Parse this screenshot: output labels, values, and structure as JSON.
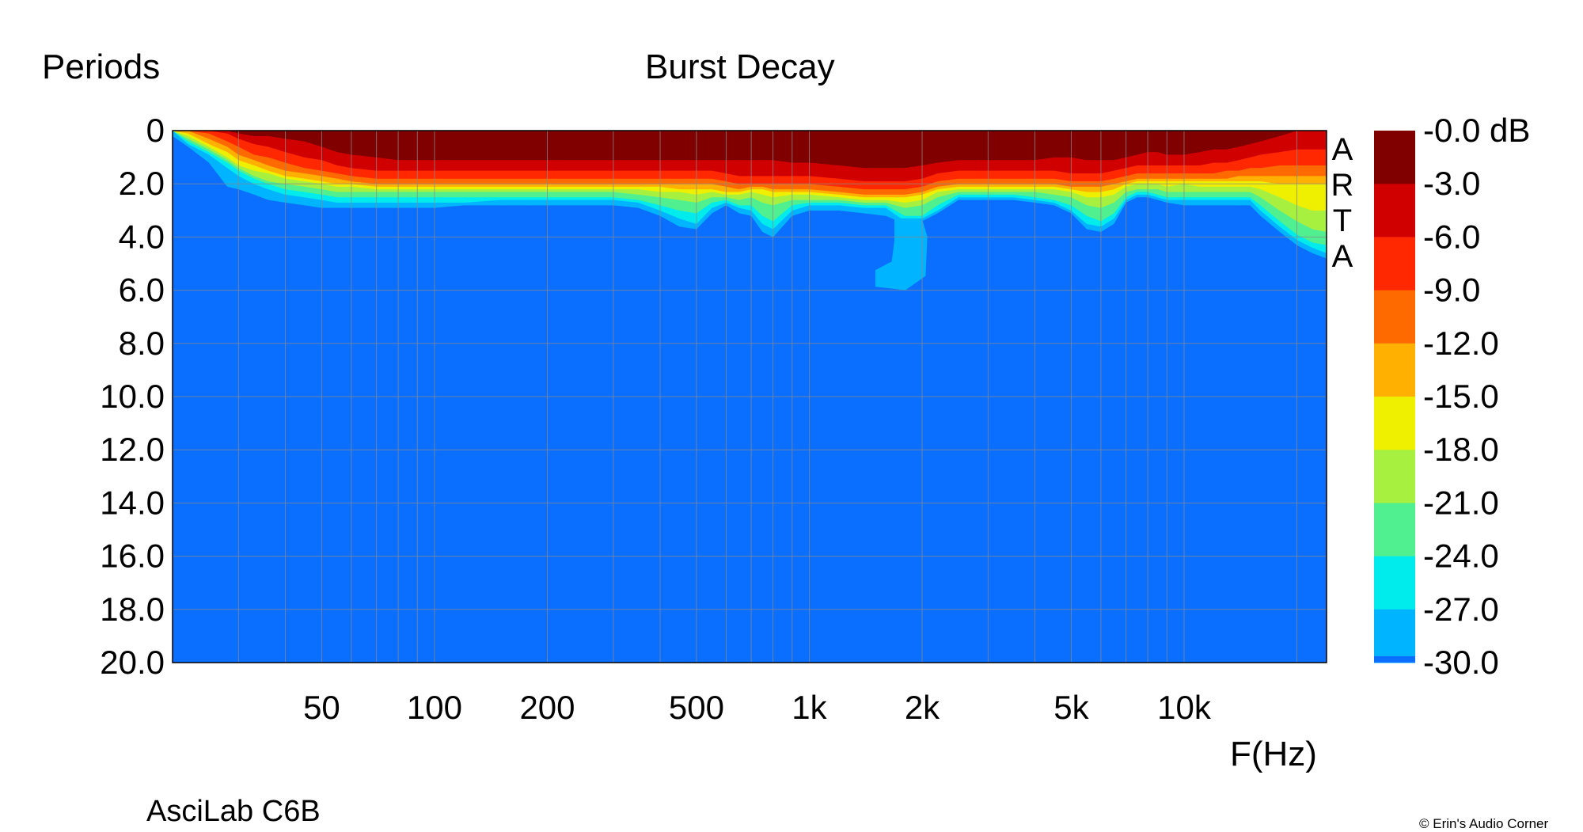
{
  "chart_data": {
    "type": "heatmap",
    "title": "Burst Decay",
    "ylabel": "Periods",
    "xlabel": "F(Hz)",
    "x_scale": "log",
    "xlim": [
      20,
      24000
    ],
    "ylim": [
      20.0,
      0
    ],
    "x_tick_values": [
      50,
      100,
      200,
      500,
      1000,
      2000,
      5000,
      10000
    ],
    "x_tick_labels": [
      "50",
      "100",
      "200",
      "500",
      "1k",
      "2k",
      "5k",
      "10k"
    ],
    "y_tick_values": [
      0,
      2,
      4,
      6,
      8,
      10,
      12,
      14,
      16,
      18,
      20
    ],
    "y_tick_labels": [
      "0",
      "2.0",
      "4.0",
      "6.0",
      "8.0",
      "10.0",
      "12.0",
      "14.0",
      "16.0",
      "18.0",
      "20.0"
    ],
    "grid": true,
    "colorbar": {
      "unit": "dB",
      "labels": [
        "-0.0 dB",
        "-3.0",
        "-6.0",
        "-9.0",
        "-12.0",
        "-15.0",
        "-18.0",
        "-21.0",
        "-24.0",
        "-27.0",
        "-30.0"
      ],
      "levels": [
        {
          "from": 0,
          "to": -3,
          "color": "#800000"
        },
        {
          "from": -3,
          "to": -6,
          "color": "#d00000"
        },
        {
          "from": -6,
          "to": -9,
          "color": "#ff2800"
        },
        {
          "from": -9,
          "to": -12,
          "color": "#ff6a00"
        },
        {
          "from": -12,
          "to": -15,
          "color": "#ffb000"
        },
        {
          "from": -15,
          "to": -18,
          "color": "#eef000"
        },
        {
          "from": -18,
          "to": -21,
          "color": "#a8f040"
        },
        {
          "from": -21,
          "to": -24,
          "color": "#50f090"
        },
        {
          "from": -24,
          "to": -27,
          "color": "#00ecec"
        },
        {
          "from": -27,
          "to": -30,
          "color": "#00b4ff"
        },
        {
          "from": -30,
          "to": -99,
          "color": "#0a6eff"
        }
      ]
    },
    "decay_contours": {
      "freq_hz": [
        20,
        22,
        25,
        28,
        30,
        33,
        36,
        40,
        45,
        50,
        55,
        60,
        70,
        80,
        90,
        100,
        120,
        150,
        180,
        200,
        250,
        300,
        350,
        400,
        450,
        500,
        550,
        600,
        650,
        700,
        750,
        800,
        900,
        1000,
        1200,
        1400,
        1600,
        1800,
        2000,
        2200,
        2500,
        3000,
        3500,
        4000,
        4500,
        5000,
        5500,
        6000,
        6500,
        7000,
        7500,
        8000,
        8500,
        9000,
        10000,
        11000,
        12000,
        13000,
        14000,
        15000,
        16000,
        18000,
        20000,
        22000,
        24000
      ],
      "periods_to_-3dB": [
        0.0,
        0.0,
        0.0,
        0.0,
        0.1,
        0.2,
        0.2,
        0.3,
        0.4,
        0.6,
        0.8,
        0.9,
        1.0,
        1.1,
        1.1,
        1.1,
        1.1,
        1.1,
        1.1,
        1.1,
        1.1,
        1.1,
        1.1,
        1.1,
        1.1,
        1.1,
        1.1,
        1.1,
        1.1,
        1.1,
        1.1,
        1.1,
        1.2,
        1.2,
        1.3,
        1.4,
        1.4,
        1.4,
        1.3,
        1.2,
        1.1,
        1.1,
        1.1,
        1.1,
        1.0,
        1.0,
        1.1,
        1.1,
        1.1,
        1.0,
        0.9,
        0.8,
        0.8,
        0.9,
        0.9,
        0.8,
        0.7,
        0.7,
        0.6,
        0.5,
        0.4,
        0.2,
        0.0,
        0.0,
        0.0
      ],
      "periods_to_-6dB": [
        0.0,
        0.0,
        0.0,
        0.1,
        0.3,
        0.5,
        0.6,
        0.8,
        1.0,
        1.1,
        1.3,
        1.4,
        1.5,
        1.5,
        1.5,
        1.5,
        1.5,
        1.5,
        1.5,
        1.5,
        1.5,
        1.5,
        1.5,
        1.5,
        1.5,
        1.5,
        1.5,
        1.6,
        1.7,
        1.7,
        1.7,
        1.7,
        1.7,
        1.7,
        1.8,
        1.9,
        1.9,
        1.9,
        1.8,
        1.6,
        1.5,
        1.5,
        1.5,
        1.5,
        1.5,
        1.6,
        1.6,
        1.6,
        1.5,
        1.4,
        1.3,
        1.3,
        1.3,
        1.3,
        1.3,
        1.3,
        1.2,
        1.2,
        1.1,
        1.0,
        0.9,
        0.8,
        0.7,
        0.7,
        0.7
      ],
      "periods_to_-9dB": [
        0.0,
        0.0,
        0.1,
        0.4,
        0.6,
        0.9,
        1.0,
        1.2,
        1.4,
        1.5,
        1.6,
        1.7,
        1.8,
        1.8,
        1.8,
        1.8,
        1.8,
        1.8,
        1.8,
        1.8,
        1.8,
        1.8,
        1.8,
        1.8,
        1.8,
        1.8,
        1.8,
        1.9,
        2.0,
        2.0,
        2.0,
        2.0,
        2.0,
        2.0,
        2.1,
        2.2,
        2.2,
        2.2,
        2.1,
        1.9,
        1.8,
        1.8,
        1.8,
        1.8,
        1.8,
        1.9,
        1.9,
        1.9,
        1.8,
        1.7,
        1.6,
        1.6,
        1.6,
        1.6,
        1.6,
        1.6,
        1.6,
        1.5,
        1.5,
        1.4,
        1.4,
        1.3,
        1.3,
        1.3,
        1.3
      ],
      "periods_to_-12dB": [
        0.0,
        0.0,
        0.3,
        0.6,
        0.9,
        1.1,
        1.3,
        1.5,
        1.6,
        1.7,
        1.8,
        1.9,
        2.0,
        2.0,
        2.0,
        2.0,
        2.0,
        2.0,
        2.0,
        2.0,
        2.0,
        2.0,
        2.0,
        2.0,
        2.0,
        2.0,
        2.0,
        2.1,
        2.2,
        2.1,
        2.1,
        2.2,
        2.2,
        2.2,
        2.3,
        2.4,
        2.4,
        2.4,
        2.3,
        2.1,
        2.0,
        2.0,
        2.0,
        2.0,
        2.0,
        2.1,
        2.1,
        2.1,
        2.0,
        1.9,
        1.8,
        1.8,
        1.8,
        1.8,
        1.8,
        1.8,
        1.8,
        1.8,
        1.7,
        1.7,
        1.7,
        1.7,
        1.7,
        1.7,
        1.7
      ],
      "periods_to_-15dB": [
        0.0,
        0.1,
        0.5,
        0.8,
        1.1,
        1.3,
        1.5,
        1.7,
        1.8,
        1.9,
        2.0,
        2.0,
        2.1,
        2.1,
        2.1,
        2.1,
        2.1,
        2.1,
        2.1,
        2.1,
        2.1,
        2.1,
        2.1,
        2.1,
        2.2,
        2.2,
        2.2,
        2.3,
        2.3,
        2.2,
        2.2,
        2.3,
        2.3,
        2.3,
        2.4,
        2.5,
        2.5,
        2.5,
        2.4,
        2.2,
        2.1,
        2.1,
        2.1,
        2.1,
        2.1,
        2.2,
        2.3,
        2.3,
        2.2,
        2.0,
        1.9,
        1.9,
        1.9,
        1.9,
        1.9,
        1.9,
        1.9,
        1.9,
        1.9,
        1.9,
        1.9,
        2.0,
        2.0,
        2.0,
        2.0
      ],
      "periods_to_-18dB": [
        0.0,
        0.2,
        0.6,
        1.0,
        1.3,
        1.5,
        1.6,
        1.8,
        1.9,
        2.0,
        2.1,
        2.1,
        2.2,
        2.2,
        2.2,
        2.2,
        2.2,
        2.2,
        2.2,
        2.2,
        2.2,
        2.2,
        2.2,
        2.3,
        2.3,
        2.4,
        2.3,
        2.4,
        2.4,
        2.3,
        2.4,
        2.5,
        2.4,
        2.4,
        2.5,
        2.6,
        2.6,
        2.7,
        2.6,
        2.3,
        2.2,
        2.2,
        2.2,
        2.2,
        2.2,
        2.3,
        2.5,
        2.5,
        2.4,
        2.1,
        2.0,
        2.0,
        2.0,
        2.1,
        2.0,
        2.1,
        2.1,
        2.1,
        2.1,
        2.1,
        2.2,
        2.5,
        2.8,
        3.0,
        3.0
      ],
      "periods_to_-21dB": [
        0.0,
        0.3,
        0.7,
        1.1,
        1.4,
        1.7,
        1.9,
        2.0,
        2.1,
        2.2,
        2.3,
        2.3,
        2.3,
        2.3,
        2.3,
        2.3,
        2.3,
        2.3,
        2.3,
        2.3,
        2.3,
        2.3,
        2.4,
        2.5,
        2.6,
        2.7,
        2.5,
        2.5,
        2.6,
        2.5,
        2.7,
        2.8,
        2.6,
        2.6,
        2.6,
        2.7,
        2.7,
        2.9,
        2.8,
        2.5,
        2.3,
        2.3,
        2.3,
        2.3,
        2.4,
        2.5,
        2.8,
        2.9,
        2.7,
        2.3,
        2.2,
        2.2,
        2.2,
        2.3,
        2.3,
        2.3,
        2.3,
        2.3,
        2.3,
        2.3,
        2.5,
        3.0,
        3.4,
        3.7,
        3.8
      ],
      "periods_to_-24dB": [
        0.0,
        0.4,
        0.8,
        1.2,
        1.5,
        1.8,
        2.0,
        2.2,
        2.3,
        2.4,
        2.5,
        2.5,
        2.5,
        2.5,
        2.5,
        2.5,
        2.5,
        2.5,
        2.5,
        2.5,
        2.5,
        2.5,
        2.6,
        2.8,
        3.0,
        3.1,
        2.7,
        2.6,
        2.8,
        2.8,
        3.2,
        3.4,
        2.8,
        2.7,
        2.7,
        2.8,
        2.8,
        3.2,
        3.2,
        2.8,
        2.4,
        2.4,
        2.4,
        2.5,
        2.6,
        2.8,
        3.2,
        3.4,
        3.1,
        2.5,
        2.3,
        2.3,
        2.4,
        2.5,
        2.5,
        2.5,
        2.5,
        2.5,
        2.5,
        2.5,
        2.8,
        3.4,
        3.9,
        4.2,
        4.3
      ],
      "periods_to_-27dB": [
        0.0,
        0.5,
        0.9,
        1.4,
        1.7,
        2.0,
        2.2,
        2.4,
        2.5,
        2.6,
        2.7,
        2.7,
        2.7,
        2.7,
        2.7,
        2.7,
        2.7,
        2.6,
        2.6,
        2.6,
        2.6,
        2.6,
        2.7,
        3.0,
        3.3,
        3.5,
        2.9,
        2.7,
        2.9,
        3.0,
        3.5,
        3.7,
        3.0,
        2.8,
        2.8,
        2.9,
        2.9,
        3.4,
        3.3,
        3.0,
        2.5,
        2.5,
        2.5,
        2.6,
        2.7,
        3.0,
        3.5,
        3.6,
        3.3,
        2.6,
        2.4,
        2.4,
        2.5,
        2.6,
        2.6,
        2.6,
        2.6,
        2.6,
        2.6,
        2.6,
        3.0,
        3.6,
        4.1,
        4.4,
        4.6
      ],
      "periods_to_-30dB": [
        0.2,
        0.6,
        1.2,
        2.1,
        2.2,
        2.4,
        2.6,
        2.7,
        2.8,
        2.9,
        2.9,
        2.9,
        2.9,
        2.9,
        2.9,
        2.9,
        2.8,
        2.8,
        2.8,
        2.8,
        2.8,
        2.8,
        2.9,
        3.2,
        3.6,
        3.7,
        3.1,
        2.8,
        3.1,
        3.2,
        3.8,
        4.0,
        3.2,
        3.0,
        3.0,
        3.1,
        3.2,
        3.5,
        3.4,
        3.1,
        2.6,
        2.6,
        2.6,
        2.7,
        2.8,
        3.1,
        3.7,
        3.8,
        3.5,
        2.7,
        2.5,
        2.5,
        2.6,
        2.7,
        2.8,
        2.8,
        2.8,
        2.8,
        2.8,
        2.8,
        3.2,
        3.8,
        4.3,
        4.6,
        4.8
      ]
    },
    "residual_regions": [
      {
        "freq_range_hz": [
          1500,
          2100
        ],
        "periods_range": [
          3.3,
          6.0
        ],
        "level": "-27.0"
      }
    ]
  },
  "watermark": [
    "A",
    "R",
    "T",
    "A"
  ],
  "footer": {
    "device_label": "AsciLab C6B",
    "copyright": "© Erin's Audio Corner"
  }
}
